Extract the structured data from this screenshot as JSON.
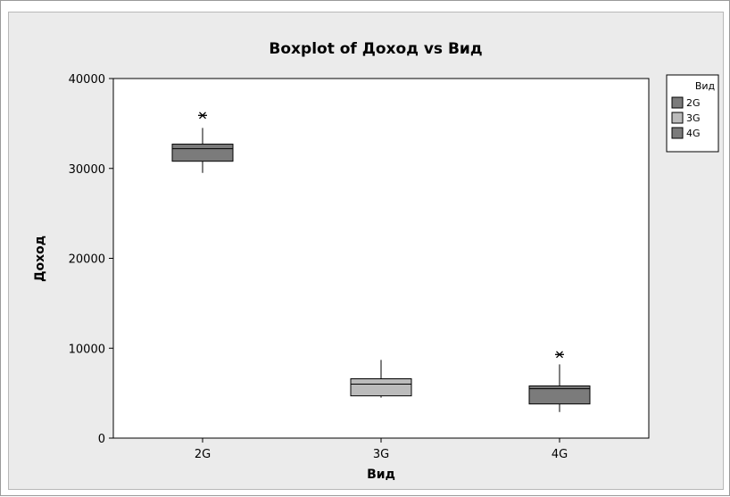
{
  "chart_data": {
    "type": "boxplot",
    "title": "Boxplot of Доход vs Вид",
    "xlabel": "Вид",
    "ylabel": "Доход",
    "categories": [
      "2G",
      "3G",
      "4G"
    ],
    "ylim": [
      0,
      40000
    ],
    "yticks": [
      0,
      10000,
      20000,
      30000,
      40000
    ],
    "ytick_labels": [
      "0",
      "10000",
      "20000",
      "30000",
      "40000"
    ],
    "boxes": [
      {
        "category": "2G",
        "min": 29500,
        "q1": 30800,
        "median": 32200,
        "q3": 32700,
        "max": 34500,
        "outliers": [
          35900
        ]
      },
      {
        "category": "3G",
        "min": 4500,
        "q1": 4700,
        "median": 6000,
        "q3": 6600,
        "max": 8700,
        "outliers": []
      },
      {
        "category": "4G",
        "min": 2900,
        "q1": 3800,
        "median": 5500,
        "q3": 5800,
        "max": 8200,
        "outliers": [
          9300
        ]
      }
    ],
    "legend": {
      "title": "Вид",
      "placement": "top-right",
      "entries": [
        "2G",
        "3G",
        "4G"
      ]
    },
    "colors": {
      "2G": "#7b7b7b",
      "3G": "#bbbbbb",
      "4G": "#7b7b7b"
    },
    "grid": false
  }
}
